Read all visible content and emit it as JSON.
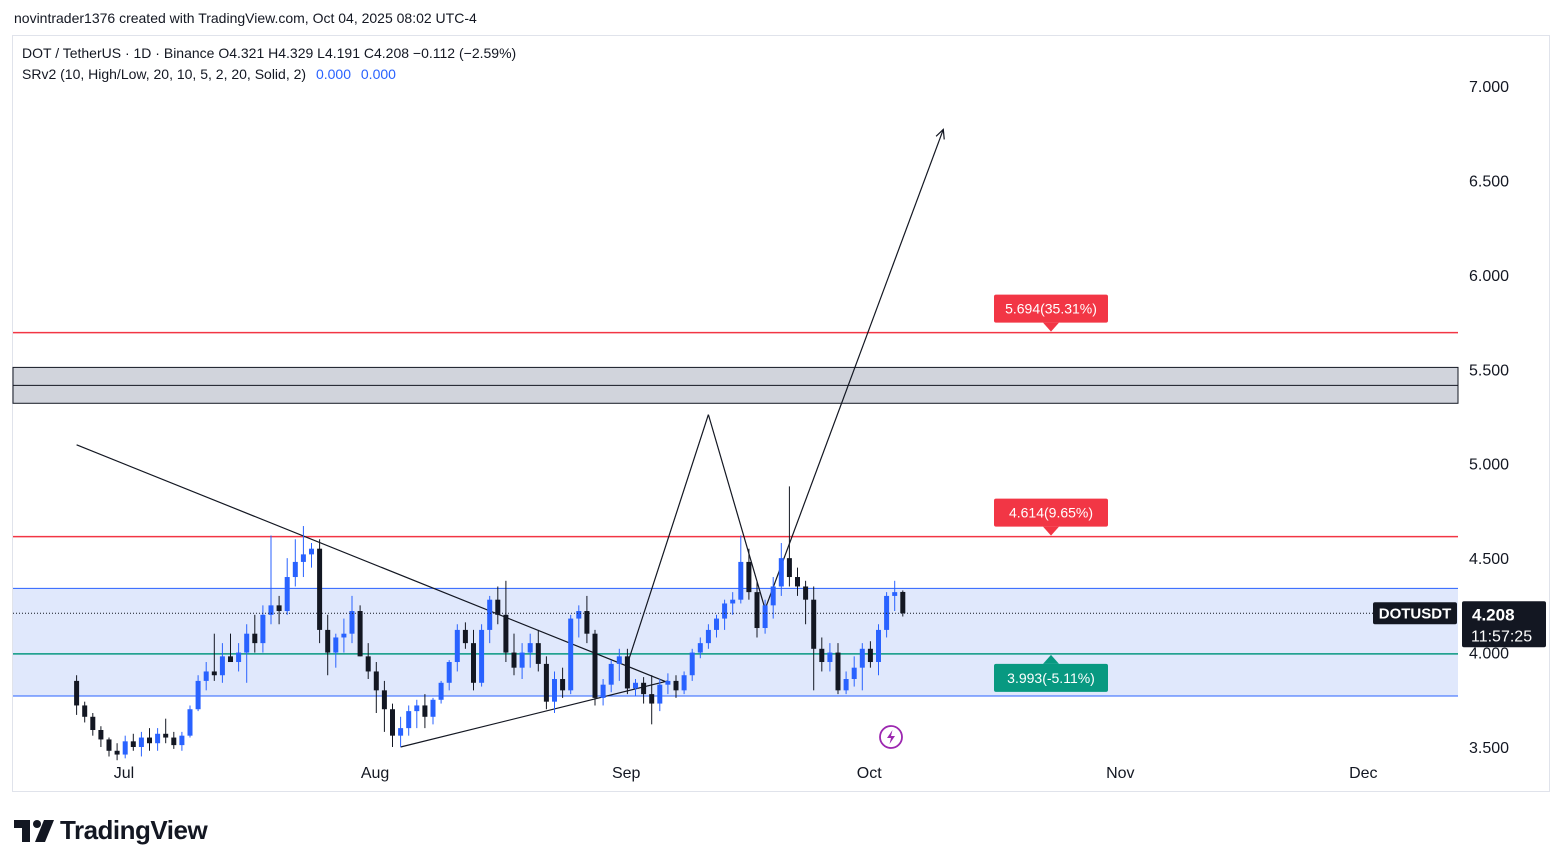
{
  "caption": "novintrader1376 created with TradingView.com, Oct 04, 2025 08:02 UTC-4",
  "legend": {
    "symbol_line": "DOT / TetherUS · 1D · Binance  O4.321  H4.329  L4.191  C4.208  −0.112 (−2.59%)",
    "indicator_line": "SRv2 (10, High/Low, 20, 10, 5, 2, 20, Solid, 2)",
    "indicator_value1": "0.000",
    "indicator_value2": "0.000"
  },
  "brand": "TradingView",
  "price_badge": {
    "symbol": "DOTUSDT",
    "price": "4.208",
    "countdown": "11:57:25"
  },
  "icons": [
    "tradingview-logo-icon",
    "lightning-event-icon"
  ],
  "colors": {
    "up": "#2962ff",
    "down": "#131722",
    "resistance": "#f23645",
    "support": "#089981",
    "zone_fill": "#d6e0fb",
    "grey_zone": "#d1d4dc"
  },
  "chart_data": {
    "type": "candlestick",
    "symbol": "DOT / TetherUS",
    "timeframe": "1D",
    "exchange": "Binance",
    "ylim": [
      3.43,
      7.2
    ],
    "y_ticks": [
      "7.000",
      "6.500",
      "6.000",
      "5.500",
      "5.000",
      "4.500",
      "4.000",
      "3.500"
    ],
    "x_ticks": [
      {
        "label": "Jul",
        "t": 0
      },
      {
        "label": "Aug",
        "t": 31
      },
      {
        "label": "Sep",
        "t": 62
      },
      {
        "label": "Oct",
        "t": 92
      },
      {
        "label": "Nov",
        "t": 123
      },
      {
        "label": "Dec",
        "t": 153
      }
    ],
    "last_candle": {
      "open": 4.321,
      "high": 4.329,
      "low": 4.191,
      "close": 4.208
    },
    "candles": [
      [
        -14,
        3.85,
        3.88,
        3.67,
        3.72
      ],
      [
        -13,
        3.72,
        3.74,
        3.63,
        3.66
      ],
      [
        -12,
        3.66,
        3.68,
        3.56,
        3.59
      ],
      [
        -11,
        3.59,
        3.61,
        3.5,
        3.54
      ],
      [
        -10,
        3.54,
        3.55,
        3.45,
        3.48
      ],
      [
        -9,
        3.48,
        3.52,
        3.43,
        3.46
      ],
      [
        -8,
        3.46,
        3.56,
        3.44,
        3.53
      ],
      [
        -7,
        3.53,
        3.57,
        3.48,
        3.5
      ],
      [
        -6,
        3.5,
        3.58,
        3.45,
        3.55
      ],
      [
        -5,
        3.55,
        3.6,
        3.48,
        3.52
      ],
      [
        -4,
        3.52,
        3.6,
        3.48,
        3.57
      ],
      [
        -3,
        3.57,
        3.65,
        3.52,
        3.55
      ],
      [
        -2,
        3.55,
        3.58,
        3.49,
        3.51
      ],
      [
        -1,
        3.51,
        3.58,
        3.48,
        3.56
      ],
      [
        0,
        3.56,
        3.72,
        3.55,
        3.7
      ],
      [
        1,
        3.7,
        3.88,
        3.69,
        3.85
      ],
      [
        2,
        3.85,
        3.95,
        3.8,
        3.9
      ],
      [
        3,
        3.9,
        4.1,
        3.85,
        3.88
      ],
      [
        4,
        3.88,
        4.05,
        3.84,
        3.98
      ],
      [
        5,
        3.98,
        4.1,
        3.95,
        3.95
      ],
      [
        6,
        3.95,
        4.05,
        3.9,
        4.0
      ],
      [
        7,
        4.0,
        4.15,
        3.84,
        4.1
      ],
      [
        8,
        4.1,
        4.2,
        4.0,
        4.05
      ],
      [
        9,
        4.05,
        4.25,
        4.0,
        4.2
      ],
      [
        10,
        4.2,
        4.62,
        4.15,
        4.25
      ],
      [
        11,
        4.25,
        4.3,
        4.15,
        4.22
      ],
      [
        12,
        4.22,
        4.5,
        4.2,
        4.4
      ],
      [
        13,
        4.4,
        4.6,
        4.35,
        4.48
      ],
      [
        14,
        4.48,
        4.67,
        4.4,
        4.52
      ],
      [
        15,
        4.52,
        4.58,
        4.45,
        4.55
      ],
      [
        16,
        4.55,
        4.6,
        4.05,
        4.12
      ],
      [
        17,
        4.12,
        4.2,
        3.88,
        4.0
      ],
      [
        18,
        4.0,
        4.1,
        3.92,
        4.08
      ],
      [
        19,
        4.08,
        4.18,
        4.0,
        4.1
      ],
      [
        20,
        4.1,
        4.3,
        4.05,
        4.22
      ],
      [
        21,
        4.22,
        4.25,
        3.98,
        3.98
      ],
      [
        22,
        3.98,
        4.05,
        3.86,
        3.9
      ],
      [
        23,
        3.9,
        3.95,
        3.68,
        3.8
      ],
      [
        24,
        3.8,
        3.85,
        3.58,
        3.7
      ],
      [
        25,
        3.7,
        3.73,
        3.5,
        3.56
      ],
      [
        26,
        3.56,
        3.66,
        3.5,
        3.6
      ],
      [
        27,
        3.6,
        3.72,
        3.56,
        3.69
      ],
      [
        28,
        3.69,
        3.75,
        3.6,
        3.72
      ],
      [
        29,
        3.72,
        3.78,
        3.6,
        3.66
      ],
      [
        30,
        3.66,
        3.76,
        3.62,
        3.75
      ],
      [
        31,
        3.75,
        3.85,
        3.73,
        3.84
      ],
      [
        32,
        3.84,
        3.96,
        3.8,
        3.95
      ],
      [
        33,
        3.95,
        4.15,
        3.9,
        4.12
      ],
      [
        34,
        4.12,
        4.16,
        4.02,
        4.05
      ],
      [
        35,
        4.05,
        4.12,
        3.8,
        3.84
      ],
      [
        36,
        3.84,
        4.15,
        3.82,
        4.12
      ],
      [
        37,
        4.12,
        4.3,
        4.05,
        4.28
      ],
      [
        38,
        4.28,
        4.35,
        4.15,
        4.2
      ],
      [
        39,
        4.2,
        4.38,
        3.95,
        4.0
      ],
      [
        40,
        4.0,
        4.1,
        3.88,
        3.92
      ],
      [
        41,
        3.92,
        4.05,
        3.86,
        4.0
      ],
      [
        42,
        4.0,
        4.1,
        3.92,
        4.05
      ],
      [
        43,
        4.05,
        4.12,
        3.9,
        3.94
      ],
      [
        44,
        3.94,
        3.98,
        3.7,
        3.74
      ],
      [
        45,
        3.74,
        3.9,
        3.68,
        3.86
      ],
      [
        46,
        3.86,
        3.92,
        3.76,
        3.8
      ],
      [
        47,
        3.8,
        4.2,
        3.78,
        4.18
      ],
      [
        48,
        4.18,
        4.25,
        4.08,
        4.22
      ],
      [
        49,
        4.22,
        4.3,
        4.05,
        4.1
      ],
      [
        50,
        4.1,
        4.12,
        3.72,
        3.76
      ],
      [
        51,
        3.76,
        3.86,
        3.72,
        3.83
      ],
      [
        52,
        3.83,
        3.96,
        3.79,
        3.94
      ],
      [
        53,
        3.94,
        4.02,
        3.85,
        3.98
      ],
      [
        54,
        3.98,
        4.02,
        3.78,
        3.81
      ],
      [
        55,
        3.81,
        3.86,
        3.77,
        3.84
      ],
      [
        56,
        3.84,
        3.87,
        3.73,
        3.78
      ],
      [
        57,
        3.78,
        3.88,
        3.62,
        3.73
      ],
      [
        58,
        3.73,
        3.86,
        3.69,
        3.83
      ],
      [
        59,
        3.83,
        3.89,
        3.78,
        3.85
      ],
      [
        60,
        3.85,
        3.88,
        3.76,
        3.8
      ],
      [
        61,
        3.8,
        3.9,
        3.78,
        3.88
      ],
      [
        62,
        3.88,
        4.02,
        3.85,
        4.0
      ],
      [
        63,
        4.0,
        4.08,
        3.97,
        4.05
      ],
      [
        64,
        4.05,
        4.15,
        4.02,
        4.12
      ],
      [
        65,
        4.12,
        4.2,
        4.08,
        4.18
      ],
      [
        66,
        4.18,
        4.28,
        4.12,
        4.26
      ],
      [
        67,
        4.26,
        4.32,
        4.2,
        4.28
      ],
      [
        68,
        4.28,
        4.62,
        4.26,
        4.48
      ],
      [
        69,
        4.48,
        4.55,
        4.28,
        4.32
      ],
      [
        70,
        4.32,
        4.38,
        4.08,
        4.13
      ],
      [
        71,
        4.13,
        4.28,
        4.1,
        4.25
      ],
      [
        72,
        4.25,
        4.4,
        4.18,
        4.35
      ],
      [
        73,
        4.35,
        4.58,
        4.3,
        4.5
      ],
      [
        74,
        4.5,
        4.88,
        4.35,
        4.4
      ],
      [
        75,
        4.4,
        4.45,
        4.3,
        4.35
      ],
      [
        76,
        4.35,
        4.38,
        4.15,
        4.28
      ],
      [
        77,
        4.28,
        4.35,
        3.8,
        4.02
      ],
      [
        78,
        4.02,
        4.08,
        3.9,
        3.95
      ],
      [
        79,
        3.95,
        4.05,
        3.9,
        4.0
      ],
      [
        80,
        4.0,
        4.05,
        3.78,
        3.8
      ],
      [
        81,
        3.8,
        3.9,
        3.78,
        3.86
      ],
      [
        82,
        3.86,
        3.98,
        3.82,
        3.92
      ],
      [
        83,
        3.92,
        4.05,
        3.8,
        4.02
      ],
      [
        84,
        4.02,
        4.06,
        3.92,
        3.95
      ],
      [
        85,
        3.95,
        4.15,
        3.88,
        4.12
      ],
      [
        86,
        4.12,
        4.32,
        4.08,
        4.3
      ],
      [
        87,
        4.3,
        4.38,
        4.22,
        4.32
      ],
      [
        88,
        4.321,
        4.329,
        4.191,
        4.208
      ]
    ],
    "lines": [
      {
        "name": "resistance-2",
        "price": 5.694,
        "label": "5.694(35.31%)",
        "color": "#f23645"
      },
      {
        "name": "resistance-1",
        "price": 4.614,
        "label": "4.614(9.65%)",
        "color": "#f23645"
      },
      {
        "name": "support-1",
        "price": 3.993,
        "label": "3.993(-5.11%)",
        "color": "#089981"
      }
    ],
    "zones": [
      {
        "name": "grey-resistance-zone",
        "from": 5.32,
        "to": 5.51,
        "mid": 5.415
      },
      {
        "name": "blue-range-zone",
        "from": 3.77,
        "to": 4.34
      }
    ],
    "drawings": [
      {
        "name": "descending-trendline",
        "from": [
          -14,
          5.1
        ],
        "to": [
          44,
          4.1
        ],
        "extend_to": 59
      },
      {
        "name": "ascending-trendline",
        "from": [
          26,
          3.5
        ],
        "to": [
          59,
          3.85
        ]
      },
      {
        "name": "projection-up-leg",
        "from": [
          54,
          3.94
        ],
        "to": [
          64,
          5.26
        ]
      },
      {
        "name": "projection-down-leg",
        "from": [
          64,
          5.26
        ],
        "to": [
          71,
          4.23
        ]
      },
      {
        "name": "projection-arrow",
        "from": [
          71,
          4.23
        ],
        "to": [
          93,
          6.77
        ]
      }
    ]
  }
}
